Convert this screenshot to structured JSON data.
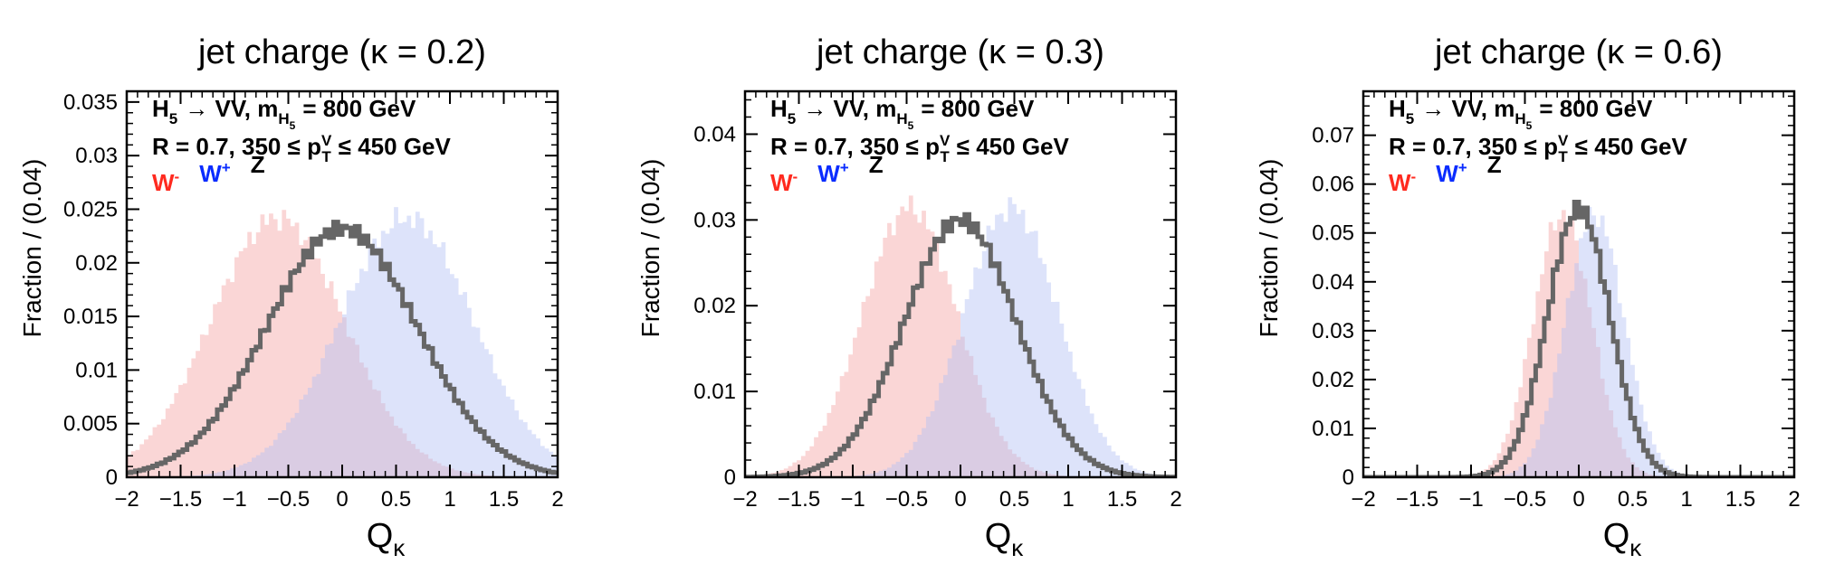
{
  "chart_data": [
    {
      "type": "line",
      "title": "jet charge (κ = 0.2)",
      "xlabel": "Qκ",
      "xlabel_base": "Q",
      "xlabel_sub": "κ",
      "ylabel": "Fraction / (0.04)",
      "xlim": [
        -2,
        2
      ],
      "ylim": [
        0,
        0.036
      ],
      "x_ticks": [
        -2,
        -1.5,
        -1,
        -0.5,
        0,
        0.5,
        1,
        1.5,
        2
      ],
      "x_tick_labels": [
        "−2",
        "−1.5",
        "−1",
        "−0.5",
        "0",
        "0.5",
        "1",
        "1.5",
        "2"
      ],
      "y_ticks": [
        0,
        0.005,
        0.01,
        0.015,
        0.02,
        0.025,
        0.03,
        0.035
      ],
      "y_tick_labels": [
        "0",
        "0.005",
        "0.01",
        "0.015",
        "0.02",
        "0.025",
        "0.03",
        "0.035"
      ],
      "series_params": {
        "mean": 0.6,
        "sigma": 0.62,
        "peak": 0.0242,
        "z_peak": 0.0232,
        "z_sigma": 0.7
      },
      "series": [
        {
          "name": "W⁻",
          "style": "filled",
          "color": "#f4a3a3",
          "x": [
            -2,
            -1.5,
            -1,
            -0.6,
            -0.5,
            0,
            0.5,
            1,
            1.5,
            2
          ],
          "values": [
            0.0015,
            0.0065,
            0.016,
            0.0242,
            0.0238,
            0.0155,
            0.006,
            0.0016,
            0.0003,
            0.0001
          ]
        },
        {
          "name": "W⁺",
          "style": "filled",
          "color": "#b3c1f5",
          "x": [
            -2,
            -1.5,
            -1,
            -0.5,
            0,
            0.5,
            0.6,
            1,
            1.5,
            2
          ],
          "values": [
            0.0001,
            0.0003,
            0.0016,
            0.006,
            0.0155,
            0.0238,
            0.0242,
            0.016,
            0.0065,
            0.0015
          ]
        },
        {
          "name": "Z",
          "style": "step",
          "color": "#666666",
          "x": [
            -2,
            -1.5,
            -1,
            -0.5,
            0,
            0.5,
            1,
            1.5,
            2
          ],
          "values": [
            0.0005,
            0.0022,
            0.0085,
            0.018,
            0.0232,
            0.018,
            0.0085,
            0.0022,
            0.0005
          ]
        }
      ],
      "legend": {
        "placement": "top-left"
      }
    },
    {
      "type": "line",
      "title": "jet charge (κ = 0.3)",
      "xlabel": "Qκ",
      "xlabel_base": "Q",
      "xlabel_sub": "κ",
      "ylabel": "Fraction / (0.04)",
      "xlim": [
        -2,
        2
      ],
      "ylim": [
        0,
        0.045
      ],
      "x_ticks": [
        -2,
        -1.5,
        -1,
        -0.5,
        0,
        0.5,
        1,
        1.5,
        2
      ],
      "x_tick_labels": [
        "−2",
        "−1.5",
        "−1",
        "−0.5",
        "0",
        "0.5",
        "1",
        "1.5",
        "2"
      ],
      "y_ticks": [
        0,
        0.01,
        0.02,
        0.03,
        0.04
      ],
      "y_tick_labels": [
        "0",
        "0.01",
        "0.02",
        "0.03",
        "0.04"
      ],
      "series_params": {
        "mean": 0.47,
        "sigma": 0.44,
        "peak": 0.0315,
        "z_peak": 0.03,
        "z_sigma": 0.52
      },
      "series": [
        {
          "name": "W⁻",
          "style": "filled",
          "color": "#f4a3a3",
          "x": [
            -2,
            -1.5,
            -1,
            -0.47,
            0,
            0.5,
            1,
            1.5,
            2
          ],
          "values": [
            0.0,
            0.002,
            0.0125,
            0.0315,
            0.019,
            0.004,
            0.0003,
            0.0,
            0.0
          ]
        },
        {
          "name": "W⁺",
          "style": "filled",
          "color": "#b3c1f5",
          "x": [
            -2,
            -1.5,
            -1,
            -0.5,
            0,
            0.47,
            1,
            1.5,
            2
          ],
          "values": [
            0.0,
            0.0,
            0.0003,
            0.004,
            0.019,
            0.0315,
            0.0125,
            0.002,
            0.0
          ]
        },
        {
          "name": "Z",
          "style": "step",
          "color": "#666666",
          "x": [
            -2,
            -1.5,
            -1,
            -0.5,
            0,
            0.5,
            1,
            1.5,
            2
          ],
          "values": [
            0.0,
            0.0015,
            0.0085,
            0.022,
            0.03,
            0.022,
            0.0085,
            0.0015,
            0.0
          ]
        }
      ],
      "legend": {
        "placement": "top-left"
      }
    },
    {
      "type": "line",
      "title": "jet charge (κ = 0.6)",
      "xlabel": "Qκ",
      "xlabel_base": "Q",
      "xlabel_sub": "κ",
      "ylabel": "Fraction / (0.04)",
      "xlim": [
        -2,
        2
      ],
      "ylim": [
        0,
        0.079
      ],
      "x_ticks": [
        -2,
        -1.5,
        -1,
        -0.5,
        0,
        0.5,
        1,
        1.5,
        2
      ],
      "x_tick_labels": [
        "−2",
        "−1.5",
        "−1",
        "−0.5",
        "0",
        "0.5",
        "1",
        "1.5",
        "2"
      ],
      "y_ticks": [
        0,
        0.01,
        0.02,
        0.03,
        0.04,
        0.05,
        0.06,
        0.07
      ],
      "y_tick_labels": [
        "0",
        "0.01",
        "0.02",
        "0.03",
        "0.04",
        "0.05",
        "0.06",
        "0.07"
      ],
      "series_params": {
        "mean": 0.15,
        "sigma": 0.27,
        "peak": 0.054,
        "z_peak": 0.055,
        "z_sigma": 0.29
      },
      "series": [
        {
          "name": "W⁻",
          "style": "filled",
          "color": "#f4a3a3",
          "x": [
            -2,
            -1,
            -0.5,
            -0.15,
            0,
            0.5,
            1,
            2
          ],
          "values": [
            0.0,
            0.0005,
            0.023,
            0.054,
            0.046,
            0.0035,
            0.0,
            0.0
          ]
        },
        {
          "name": "W⁺",
          "style": "filled",
          "color": "#b3c1f5",
          "x": [
            -2,
            -1,
            -0.5,
            0,
            0.15,
            0.5,
            1,
            2
          ],
          "values": [
            0.0,
            0.0,
            0.0035,
            0.046,
            0.054,
            0.023,
            0.0005,
            0.0
          ]
        },
        {
          "name": "Z",
          "style": "step",
          "color": "#666666",
          "x": [
            -2,
            -1,
            -0.5,
            0,
            0.5,
            1,
            2
          ],
          "values": [
            0.0,
            0.0015,
            0.013,
            0.055,
            0.013,
            0.0015,
            0.0
          ]
        }
      ],
      "legend": {
        "placement": "top-left"
      }
    }
  ],
  "annotation": {
    "line1": {
      "H": "H",
      "H_sub": "5",
      "arrow": "→ VV, m",
      "m_sub_H": "H",
      "m_sub_5": "5",
      "value": "= 800 GeV"
    },
    "line2": {
      "pre": "R = 0.7, 350 ≤ p",
      "p_sup": "V",
      "p_sub": "T",
      "post": "≤ 450 GeV"
    }
  },
  "legend_labels": [
    {
      "base": "W",
      "sup": "-",
      "color": "#ff2a1f"
    },
    {
      "base": "W",
      "sup": "+",
      "color": "#0a2cff"
    },
    {
      "base": "Z",
      "sup": "",
      "color": "#000000"
    }
  ]
}
